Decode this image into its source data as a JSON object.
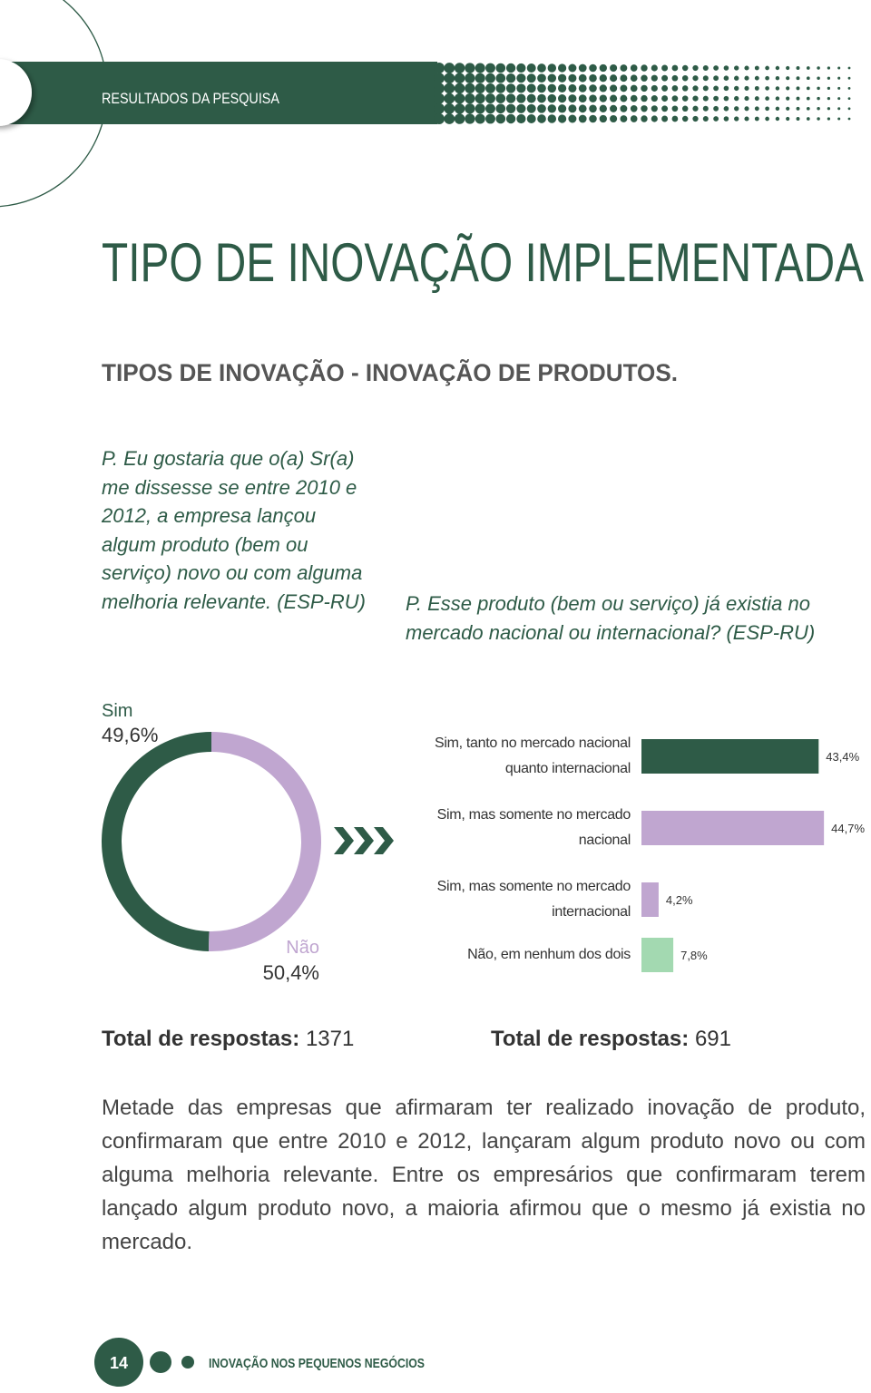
{
  "header": {
    "section": "RESULTADOS DA PESQUISA"
  },
  "title": "TIPO DE INOVAÇÃO IMPLEMENTADA",
  "subtitle": "TIPOS DE INOVAÇÃO - INOVAÇÃO DE PRODUTOS.",
  "questions": [
    "P. Eu gostaria que o(a) Sr(a) me dissesse se entre 2010 e 2012, a empresa lançou algum produto (bem ou serviço) novo ou com alguma melhoria relevante. (ESP-RU)",
    "P. Esse produto (bem ou serviço) já existia no mercado nacional ou internacional? (ESP-RU)"
  ],
  "chart_data": [
    {
      "type": "pie",
      "donut": true,
      "categories": [
        "Sim",
        "Não"
      ],
      "values": [
        49.6,
        50.4
      ],
      "value_labels": [
        "49,6%",
        "50,4%"
      ],
      "colors": [
        "#2e5b47",
        "#c0a6d0"
      ]
    },
    {
      "type": "bar",
      "orientation": "horizontal",
      "categories": [
        "Sim, tanto no mercado nacional quanto internacional",
        "Sim, mas somente no mercado nacional",
        "Sim, mas somente no mercado internacional",
        "Não, em nenhum dos dois"
      ],
      "values": [
        43.4,
        44.7,
        4.2,
        7.8
      ],
      "value_labels": [
        "43,4%",
        "44,7%",
        "4,2%",
        "7,8%"
      ],
      "colors": [
        "#2e5b47",
        "#c0a6d0",
        "#c0a6d0",
        "#a3d9b1"
      ]
    }
  ],
  "totals": [
    {
      "label": "Total de respostas:",
      "value": 1371
    },
    {
      "label": "Total de respostas:",
      "value": 691
    }
  ],
  "paragraph": "Metade das empresas que afirmaram ter realizado inovação de produto, confirmaram que entre 2010 e 2012, lançaram algum produto novo ou com alguma melhoria relevante. Entre os empresários que confirmaram terem lançado algum produto novo, a maioria afirmou que o mesmo já existia no mercado.",
  "footer": {
    "page": 14,
    "text": "INOVAÇÃO NOS PEQUENOS NEGÓCIOS"
  }
}
